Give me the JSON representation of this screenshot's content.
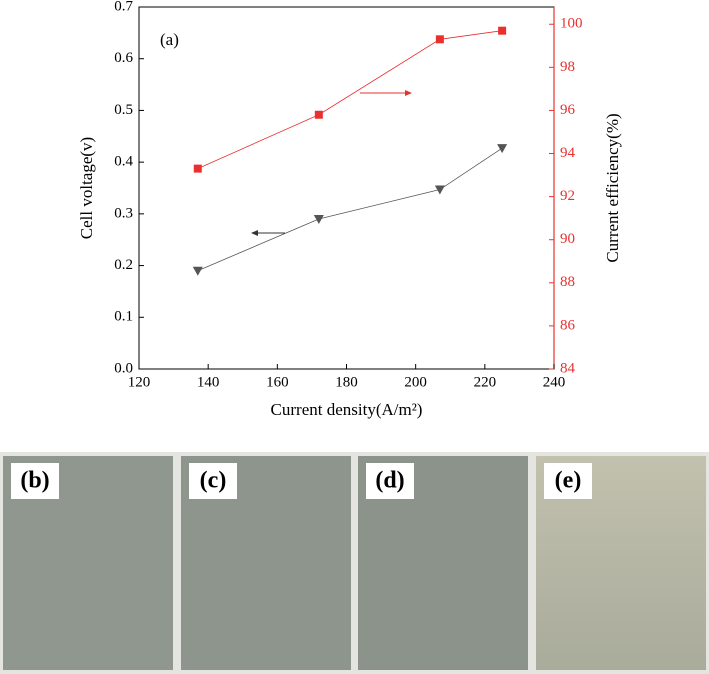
{
  "chart_data": {
    "type": "line",
    "annotations": [
      "(a)"
    ],
    "x_label": "Current density(A/m²)",
    "y_label": "Cell voltage(v)",
    "y2_label": "Current efficiency(%)",
    "x": [
      137,
      172,
      207,
      225
    ],
    "series": [
      {
        "name": "Cell voltage",
        "color": "#555555",
        "marker": "triangle-down",
        "values": [
          0.19,
          0.29,
          0.347,
          0.427
        ]
      },
      {
        "name": "Current efficiency",
        "color": "#e8312f",
        "marker": "square",
        "axis": "y2",
        "values": [
          93.3,
          95.8,
          99.3,
          99.7
        ]
      }
    ],
    "xlim": [
      120,
      240
    ],
    "xticks": [
      120,
      140,
      160,
      180,
      200,
      220,
      240
    ],
    "ylim": [
      0,
      0.7
    ],
    "yticks": [
      {
        "value": 0,
        "label": "0.0"
      },
      0.1,
      0.2,
      0.3,
      0.4,
      0.5,
      0.6,
      0.7
    ],
    "y2lim": [
      84,
      100.8
    ],
    "y2ticks": [
      84,
      86,
      88,
      90,
      92,
      94,
      96,
      98,
      100
    ],
    "y2_color": "#e8312f"
  },
  "panels": [
    "(b)",
    "(c)",
    "(d)",
    "(e)"
  ]
}
